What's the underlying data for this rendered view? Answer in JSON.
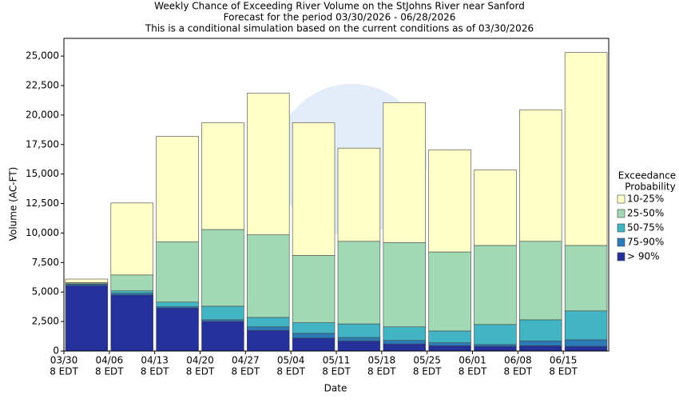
{
  "chart_data": {
    "type": "stacked-bar",
    "title": "Weekly Chance of Exceeding River Volume on the StJohns River near Sanford",
    "subtitles": [
      "Forecast for the period 03/30/2026 - 06/28/2026",
      "This is a conditional simulation based on the current conditions as of 03/30/2026"
    ],
    "x_label": "Date",
    "y_label": "Volume (AC-FT)",
    "legend_title": [
      "Exceedance",
      "Probability"
    ],
    "categories": [
      [
        "03/30",
        "8 EDT"
      ],
      [
        "04/06",
        "8 EDT"
      ],
      [
        "04/13",
        "8 EDT"
      ],
      [
        "04/20",
        "8 EDT"
      ],
      [
        "04/27",
        "8 EDT"
      ],
      [
        "05/04",
        "8 EDT"
      ],
      [
        "05/11",
        "8 EDT"
      ],
      [
        "05/18",
        "8 EDT"
      ],
      [
        "05/25",
        "8 EDT"
      ],
      [
        "06/01",
        "8 EDT"
      ],
      [
        "06/08",
        "8 EDT"
      ],
      [
        "06/15",
        "8 EDT"
      ]
    ],
    "series": [
      {
        "name": "> 90%",
        "color": "#24319a",
        "values": [
          5550,
          4750,
          3650,
          2500,
          1750,
          1100,
          850,
          600,
          450,
          400,
          450,
          400
        ]
      },
      {
        "name": "75-90%",
        "color": "#2b7bb9",
        "values": [
          100,
          150,
          100,
          150,
          300,
          400,
          300,
          300,
          250,
          150,
          400,
          550
        ]
      },
      {
        "name": "50-75%",
        "color": "#42b5c5",
        "values": [
          50,
          200,
          400,
          1150,
          800,
          900,
          1150,
          1150,
          1000,
          1700,
          1800,
          2450
        ]
      },
      {
        "name": "25-50%",
        "color": "#a1d9b4",
        "values": [
          100,
          1350,
          5100,
          6500,
          7000,
          5700,
          7000,
          7150,
          6700,
          6700,
          6650,
          5550
        ]
      },
      {
        "name": "10-25%",
        "color": "#ffffc8",
        "values": [
          300,
          6100,
          8950,
          9050,
          12000,
          11250,
          7900,
          11850,
          8650,
          6400,
          11150,
          16350
        ]
      }
    ],
    "ylim": [
      0,
      26500
    ],
    "yticks": [
      0,
      {
        "value": 2500,
        "label": "2,500"
      },
      {
        "value": 5000,
        "label": "5,000"
      },
      {
        "value": 7500,
        "label": "7,500"
      },
      {
        "value": 10000,
        "label": "10,000"
      },
      {
        "value": 12500,
        "label": "12,500"
      },
      {
        "value": 15000,
        "label": "15,000"
      },
      {
        "value": 17500,
        "label": "17,500"
      },
      {
        "value": 20000,
        "label": "20,000"
      },
      {
        "value": 22500,
        "label": "22,500"
      },
      {
        "value": 25000,
        "label": "25,000"
      }
    ],
    "legend": "right"
  }
}
